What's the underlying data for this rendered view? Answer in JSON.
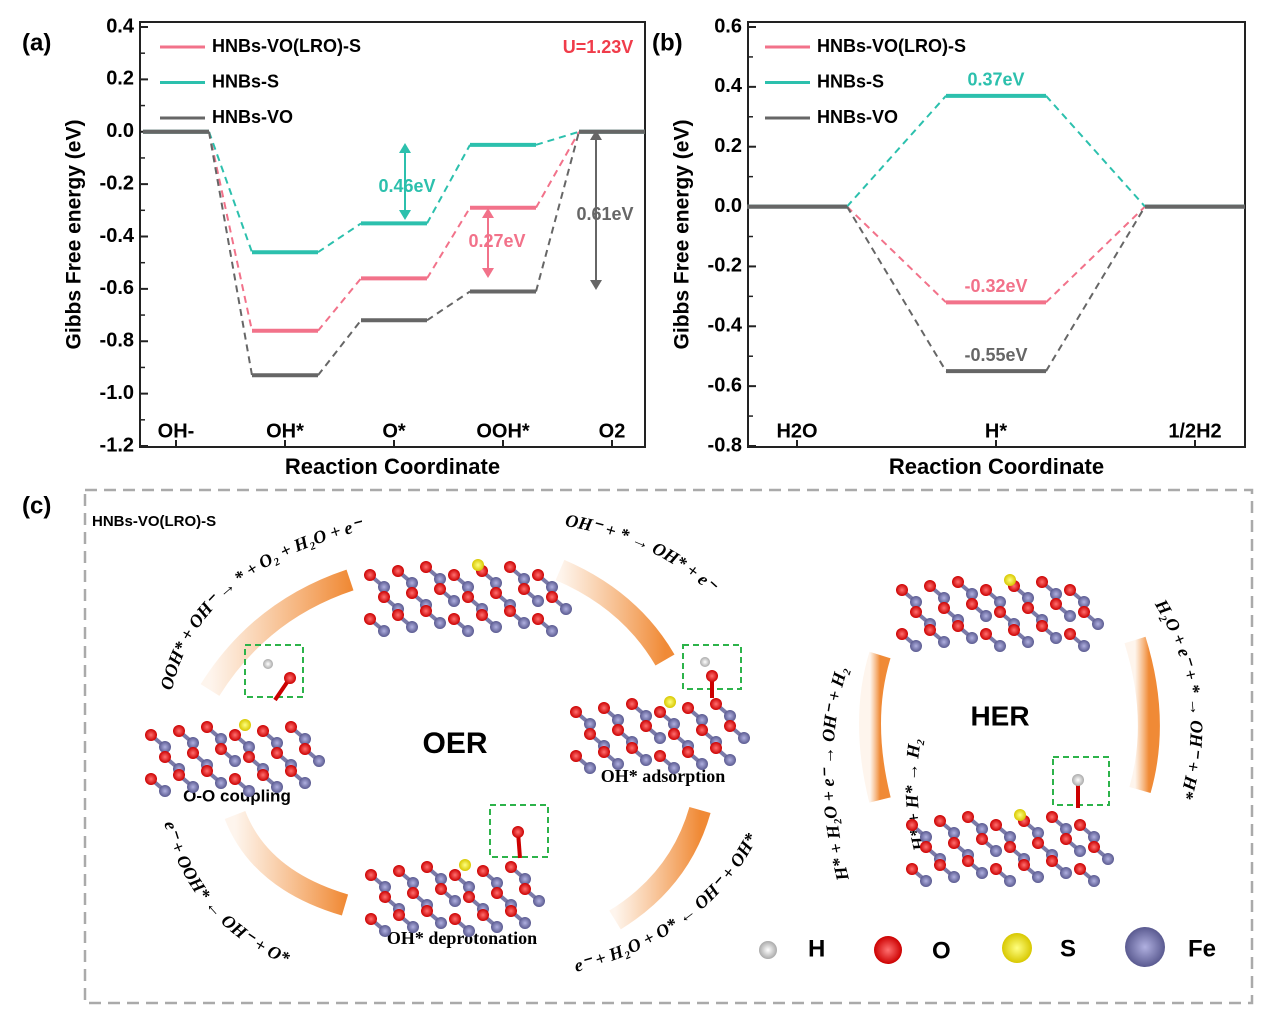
{
  "chart_data": [
    {
      "type": "energy-profile",
      "panel": "(a)",
      "x_label": "Reaction Coordinate",
      "y_label": "Gibbs Free energy (eV)",
      "categories": [
        "OH-",
        "OH*",
        "O*",
        "OOH*",
        "O2"
      ],
      "series": [
        {
          "name": "HNBs-VO(LRO)-S",
          "color": "#f2728a",
          "values": [
            0,
            -0.76,
            -0.56,
            -0.29,
            0
          ]
        },
        {
          "name": "HNBs-S",
          "color": "#2cc0ad",
          "values": [
            0,
            -0.46,
            -0.35,
            -0.05,
            0
          ]
        },
        {
          "name": "HNBs-VO",
          "color": "#666666",
          "values": [
            0,
            -0.93,
            -0.72,
            -0.61,
            0
          ]
        }
      ],
      "ylim": [
        -1.2,
        0.4
      ],
      "yticks": [
        -1.2,
        {
          "value": -1.0,
          "label": "-1.0"
        },
        -0.8,
        -0.6,
        -0.4,
        -0.2,
        {
          "value": 0,
          "label": "0.0"
        },
        0.2,
        0.4
      ],
      "annotations": [
        {
          "text": "U=1.23V",
          "color": "#f03c4a"
        },
        {
          "text": "0.46eV",
          "color": "#2cc0ad"
        },
        {
          "text": "0.27eV",
          "color": "#f2728a"
        },
        {
          "text": "0.61eV",
          "color": "#666666"
        }
      ]
    },
    {
      "type": "energy-profile",
      "panel": "(b)",
      "x_label": "Reaction Coordinate",
      "y_label": "Gibbs Free energy (eV)",
      "categories": [
        "H2O",
        "H*",
        "1/2H2"
      ],
      "series": [
        {
          "name": "HNBs-VO(LRO)-S",
          "color": "#f2728a",
          "values": [
            0,
            -0.32,
            0
          ],
          "value_labels": [
            null,
            "-0.32eV",
            null
          ]
        },
        {
          "name": "HNBs-S",
          "color": "#2cc0ad",
          "values": [
            0,
            0.37,
            0
          ],
          "value_labels": [
            null,
            "0.37eV",
            null
          ]
        },
        {
          "name": "HNBs-VO",
          "color": "#666666",
          "values": [
            0,
            -0.55,
            0
          ],
          "value_labels": [
            null,
            "-0.55eV",
            null
          ]
        }
      ],
      "ylim": [
        -0.8,
        0.6
      ],
      "yticks": [
        -0.8,
        -0.6,
        -0.4,
        -0.2,
        {
          "value": 0,
          "label": "0.0"
        },
        0.2,
        0.4,
        0.6
      ]
    }
  ],
  "diagram": {
    "panel": "(c)",
    "catalyst": "HNBs-VO(LRO)-S",
    "oer": "OER",
    "her": "HER",
    "steps": [
      "O-O coupling",
      "OH* adsorption",
      "OH* deprotonation"
    ],
    "oer_reactions": [
      "OOH* + OH⁻ → * + O₂ + H₂O + e⁻",
      "OH⁻ + * → OH* + e⁻",
      "e⁻ + H₂O + O* ← OH⁻ + OH*",
      "e⁻ + OOH* ← OH⁻ + O*"
    ],
    "her_reactions": [
      "H* + H₂O + e⁻ → OH⁻ + H₂",
      "H* + H* → H₂",
      "H₂O + e⁻ + * → OH⁻ + H*"
    ],
    "atoms": [
      "H",
      "O",
      "S",
      "Fe"
    ]
  }
}
